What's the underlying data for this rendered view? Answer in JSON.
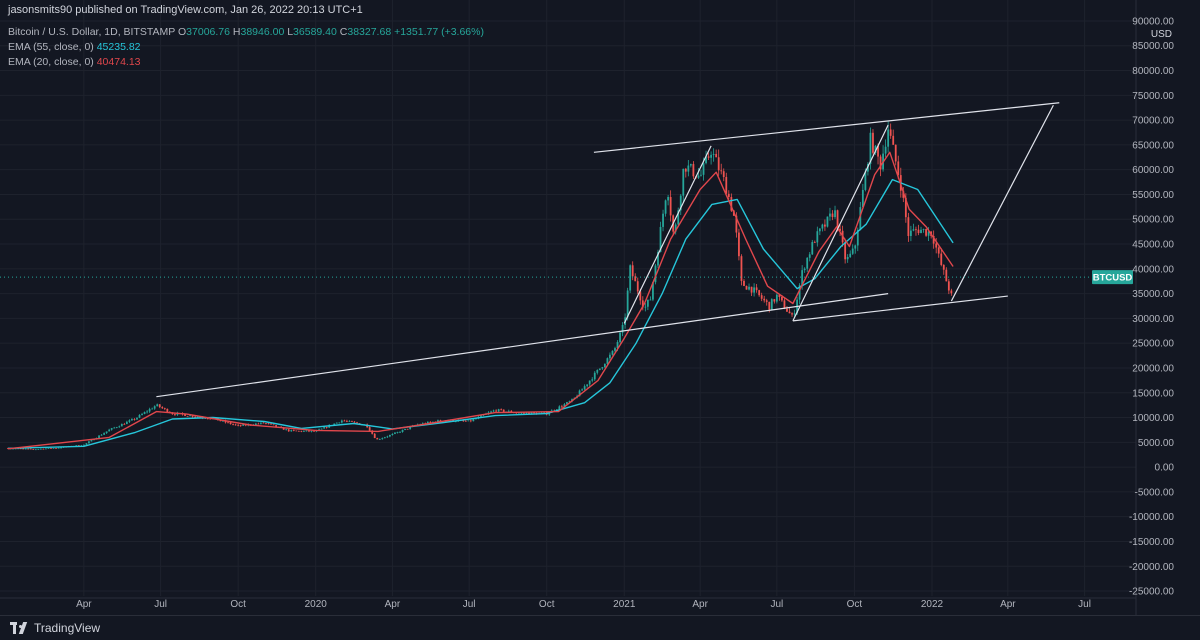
{
  "header": {
    "published": "jasonsmits90 published on TradingView.com, Jan 26, 2022 20:13 UTC+1"
  },
  "legend": {
    "symbol_line": "Bitcoin / U.S. Dollar, 1D, BITSTAMP",
    "open_label": "O",
    "open": "37006.76",
    "high_label": "H",
    "high": "38946.00",
    "low_label": "L",
    "low": "36589.40",
    "close_label": "C",
    "close": "38327.68",
    "change": "+1351.77 (+3.66%)",
    "ema55_label": "EMA (55, close, 0)",
    "ema55_value": "45235.82",
    "ema20_label": "EMA (20, close, 0)",
    "ema20_value": "40474.13"
  },
  "footer": {
    "brand": "TradingView"
  },
  "colors": {
    "background": "#131722",
    "ema55": "#26c6da",
    "ema20": "#e0474c",
    "up": "#26a69a",
    "down": "#ef5350",
    "trendline": "#e0e3eb",
    "grid": "#1e222d",
    "price_badge": "#26a69a"
  },
  "chart_data": {
    "type": "line",
    "title": "Bitcoin / U.S. Dollar, 1D, BITSTAMP",
    "currency": "USD",
    "symbol": "BTCUSD",
    "last_price": 38327.68,
    "last_price_label": "38327.68",
    "grid": true,
    "y_scale": "linear",
    "ylim": [
      -26000,
      91000
    ],
    "y_ticks": [
      "90000.00",
      "85000.00",
      "80000.00",
      "75000.00",
      "70000.00",
      "65000.00",
      "60000.00",
      "55000.00",
      "50000.00",
      "45000.00",
      "40000.00",
      "35000.00",
      "30000.00",
      "25000.00",
      "20000.00",
      "15000.00",
      "10000.00",
      "5000.00",
      "0.00",
      "-5000.00",
      "-10000.00",
      "-15000.00",
      "-20000.00",
      "-25000.00"
    ],
    "y_tick_values": [
      90000,
      85000,
      80000,
      75000,
      70000,
      65000,
      60000,
      55000,
      50000,
      45000,
      40000,
      35000,
      30000,
      25000,
      20000,
      15000,
      10000,
      5000,
      0,
      -5000,
      -10000,
      -15000,
      -20000,
      -25000
    ],
    "xlim": [
      "2019-01-01",
      "2022-08-31"
    ],
    "x_ticks": [
      {
        "date": "2019-04-01",
        "label": "Apr"
      },
      {
        "date": "2019-07-01",
        "label": "Jul"
      },
      {
        "date": "2019-10-01",
        "label": "Oct"
      },
      {
        "date": "2020-01-01",
        "label": "2020"
      },
      {
        "date": "2020-04-01",
        "label": "Apr"
      },
      {
        "date": "2020-07-01",
        "label": "Jul"
      },
      {
        "date": "2020-10-01",
        "label": "Oct"
      },
      {
        "date": "2021-01-01",
        "label": "2021"
      },
      {
        "date": "2021-04-01",
        "label": "Apr"
      },
      {
        "date": "2021-07-01",
        "label": "Jul"
      },
      {
        "date": "2021-10-01",
        "label": "Oct"
      },
      {
        "date": "2022-01-01",
        "label": "2022"
      },
      {
        "date": "2022-04-01",
        "label": "Apr"
      },
      {
        "date": "2022-07-01",
        "label": "Jul"
      }
    ],
    "series": [
      {
        "key": "price",
        "type": "candlestick",
        "x": [
          "2019-01-01",
          "2019-02-01",
          "2019-03-01",
          "2019-04-01",
          "2019-05-01",
          "2019-06-01",
          "2019-06-26",
          "2019-07-15",
          "2019-08-01",
          "2019-09-01",
          "2019-10-01",
          "2019-11-01",
          "2019-12-01",
          "2020-01-01",
          "2020-02-01",
          "2020-03-01",
          "2020-03-13",
          "2020-04-01",
          "2020-05-01",
          "2020-06-01",
          "2020-07-01",
          "2020-08-01",
          "2020-09-01",
          "2020-10-01",
          "2020-11-01",
          "2020-12-01",
          "2020-12-20",
          "2021-01-01",
          "2021-01-08",
          "2021-01-25",
          "2021-02-01",
          "2021-02-21",
          "2021-03-01",
          "2021-03-13",
          "2021-04-01",
          "2021-04-14",
          "2021-05-01",
          "2021-05-12",
          "2021-05-20",
          "2021-06-01",
          "2021-06-22",
          "2021-07-01",
          "2021-07-20",
          "2021-08-01",
          "2021-08-15",
          "2021-09-01",
          "2021-09-07",
          "2021-09-21",
          "2021-10-01",
          "2021-10-20",
          "2021-11-01",
          "2021-11-10",
          "2021-11-25",
          "2021-12-04",
          "2021-12-15",
          "2022-01-01",
          "2022-01-10",
          "2022-01-24",
          "2022-01-26"
        ],
        "y": [
          3800,
          3600,
          3900,
          4500,
          7500,
          9800,
          12500,
          10800,
          10500,
          9800,
          8300,
          8900,
          7300,
          7200,
          9400,
          8500,
          5500,
          6600,
          8600,
          9500,
          9200,
          11500,
          10900,
          10800,
          13500,
          19500,
          23500,
          29000,
          40000,
          32000,
          34000,
          57000,
          46000,
          61000,
          58500,
          64000,
          57000,
          50000,
          37000,
          36000,
          32500,
          34500,
          30000,
          40000,
          46000,
          50000,
          52000,
          41500,
          43800,
          66000,
          61000,
          68500,
          57000,
          47000,
          48000,
          47200,
          41800,
          34500,
          38327.68
        ]
      },
      {
        "key": "ema55",
        "name": "EMA (55, close, 0)",
        "x": [
          "2019-01-01",
          "2019-04-01",
          "2019-06-01",
          "2019-07-15",
          "2019-09-01",
          "2019-11-01",
          "2019-12-15",
          "2020-02-15",
          "2020-04-01",
          "2020-06-01",
          "2020-08-01",
          "2020-10-01",
          "2020-11-15",
          "2020-12-15",
          "2021-01-15",
          "2021-02-15",
          "2021-03-15",
          "2021-04-15",
          "2021-05-15",
          "2021-06-15",
          "2021-07-25",
          "2021-08-15",
          "2021-09-15",
          "2021-10-15",
          "2021-11-15",
          "2021-12-15",
          "2022-01-26"
        ],
        "y": [
          3800,
          4200,
          7000,
          9700,
          10000,
          9200,
          7800,
          8800,
          7700,
          9000,
          10400,
          10800,
          13000,
          17000,
          25000,
          35000,
          46000,
          53000,
          54000,
          44000,
          36000,
          38000,
          44500,
          49000,
          58000,
          56000,
          45235.82
        ]
      },
      {
        "key": "ema20",
        "name": "EMA (20, close, 0)",
        "x": [
          "2019-01-01",
          "2019-05-01",
          "2019-06-26",
          "2019-08-01",
          "2019-10-15",
          "2020-01-01",
          "2020-03-15",
          "2020-05-15",
          "2020-08-01",
          "2020-10-15",
          "2020-12-01",
          "2021-01-01",
          "2021-01-25",
          "2021-02-25",
          "2021-04-01",
          "2021-04-20",
          "2021-05-25",
          "2021-06-20",
          "2021-07-20",
          "2021-08-20",
          "2021-09-10",
          "2021-09-25",
          "2021-10-25",
          "2021-11-12",
          "2021-12-05",
          "2021-12-25",
          "2022-01-26"
        ],
        "y": [
          3700,
          6000,
          11200,
          10700,
          8500,
          7400,
          7200,
          8800,
          11000,
          11200,
          17500,
          26000,
          33000,
          46000,
          56000,
          59500,
          46000,
          36500,
          33000,
          43500,
          48500,
          44500,
          59000,
          63500,
          52000,
          48500,
          40474.13
        ]
      },
      {
        "key": "trendlines",
        "type": "annotation",
        "lines": [
          {
            "x": [
              "2019-06-26",
              "2021-11-10"
            ],
            "y": [
              14200,
              35000
            ]
          },
          {
            "x": [
              "2020-11-26",
              "2022-06-01"
            ],
            "y": [
              63500,
              73500
            ]
          },
          {
            "x": [
              "2021-07-20",
              "2022-04-01"
            ],
            "y": [
              29500,
              34500
            ]
          },
          {
            "x": [
              "2021-01-01",
              "2021-04-14"
            ],
            "y": [
              29000,
              64800
            ]
          },
          {
            "x": [
              "2021-07-20",
              "2021-11-10"
            ],
            "y": [
              29500,
              69000
            ]
          },
          {
            "x": [
              "2022-01-24",
              "2022-05-25"
            ],
            "y": [
              33500,
              73000
            ]
          }
        ]
      }
    ]
  }
}
